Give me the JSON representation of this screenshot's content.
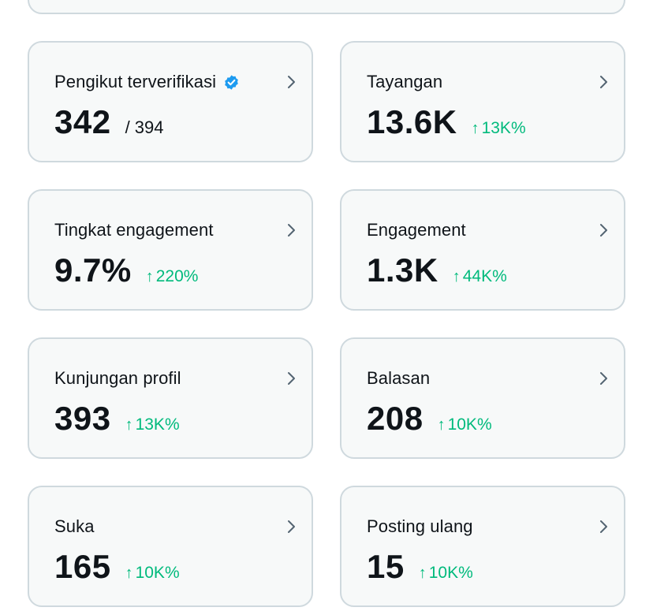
{
  "colors": {
    "card_bg": "#f7f9f9",
    "card_border": "#cfd9de",
    "text": "#0f1419",
    "positive": "#00ba7c",
    "verified": "#1d9bf0",
    "chevron": "#536471"
  },
  "cards": [
    {
      "title": "Pengikut terverifikasi",
      "value": "342",
      "total": "/ 394",
      "verified": true
    },
    {
      "title": "Tayangan",
      "value": "13.6K",
      "change_arrow": "↑",
      "change": "13K%"
    },
    {
      "title": "Tingkat engagement",
      "value": "9.7%",
      "change_arrow": "↑",
      "change": "220%"
    },
    {
      "title": "Engagement",
      "value": "1.3K",
      "change_arrow": "↑",
      "change": "44K%"
    },
    {
      "title": "Kunjungan profil",
      "value": "393",
      "change_arrow": "↑",
      "change": "13K%"
    },
    {
      "title": "Balasan",
      "value": "208",
      "change_arrow": "↑",
      "change": "10K%"
    },
    {
      "title": "Suka",
      "value": "165",
      "change_arrow": "↑",
      "change": "10K%"
    },
    {
      "title": "Posting ulang",
      "value": "15",
      "change_arrow": "↑",
      "change": "10K%"
    }
  ]
}
